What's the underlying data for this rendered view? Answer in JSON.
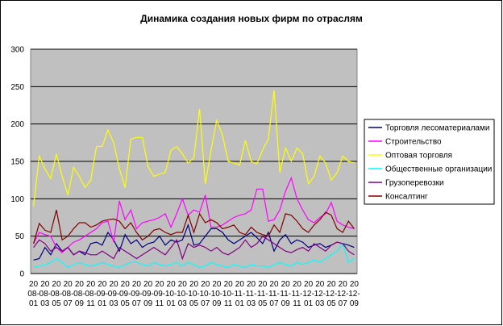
{
  "chart_data": {
    "type": "line",
    "title": "Динамика создания новых фирм по отраслям",
    "categories": [
      "2008-01",
      null,
      "2008-03",
      null,
      "2008-05",
      null,
      "2008-07",
      null,
      "2008-09",
      null,
      "2008-11",
      null,
      "2009-01",
      null,
      "2009-03",
      null,
      "2009-05",
      null,
      "2009-07",
      null,
      "2009-09",
      null,
      "2009-11",
      null,
      "2010-01",
      null,
      "2010-03",
      null,
      "2010-05",
      null,
      "2010-07",
      null,
      "2010-09",
      null,
      "2010-11",
      null,
      "2011-01",
      null,
      "2011-03",
      null,
      "2011-05",
      null,
      "2011-07",
      null,
      "2011-09",
      null,
      "2011-11",
      null,
      "2012-01",
      null,
      "2012-03",
      null,
      "2012-05",
      null,
      "2012-07",
      null,
      "2012-09"
    ],
    "series": [
      {
        "name": "Торговля лесоматериалами",
        "color": "#000080",
        "values": [
          18,
          20,
          35,
          25,
          40,
          30,
          35,
          25,
          30,
          25,
          40,
          42,
          38,
          55,
          45,
          30,
          52,
          40,
          45,
          35,
          40,
          42,
          50,
          38,
          45,
          42,
          45,
          65,
          38,
          40,
          50,
          60,
          60,
          55,
          45,
          40,
          45,
          50,
          55,
          48,
          40,
          55,
          30,
          45,
          52,
          40,
          45,
          42,
          35,
          38,
          40,
          35,
          38,
          42,
          40,
          38,
          35
        ]
      },
      {
        "name": "Строительство",
        "color": "#ff00ff",
        "values": [
          40,
          55,
          52,
          50,
          35,
          28,
          35,
          42,
          45,
          50,
          55,
          60,
          68,
          70,
          42,
          97,
          72,
          85,
          60,
          68,
          70,
          72,
          75,
          80,
          62,
          80,
          100,
          78,
          85,
          82,
          105,
          62,
          62,
          65,
          70,
          75,
          78,
          80,
          85,
          113,
          113,
          70,
          72,
          85,
          110,
          128,
          100,
          85,
          72,
          68,
          75,
          80,
          95,
          70,
          65,
          62,
          60
        ]
      },
      {
        "name": "Оптовая торговля",
        "color": "#ffff00",
        "values": [
          90,
          157,
          140,
          127,
          160,
          130,
          105,
          142,
          130,
          115,
          125,
          170,
          170,
          192,
          175,
          140,
          115,
          180,
          182,
          182,
          143,
          130,
          133,
          135,
          165,
          170,
          160,
          148,
          155,
          220,
          120,
          165,
          205,
          185,
          150,
          148,
          145,
          178,
          150,
          147,
          165,
          180,
          245,
          135,
          168,
          150,
          168,
          160,
          120,
          130,
          157,
          148,
          125,
          135,
          157,
          150,
          148
        ]
      },
      {
        "name": "Общественные организации",
        "color": "#00ffff",
        "values": [
          8,
          10,
          12,
          15,
          20,
          15,
          8,
          12,
          15,
          12,
          10,
          12,
          15,
          12,
          10,
          8,
          12,
          15,
          15,
          12,
          10,
          15,
          12,
          10,
          12,
          15,
          10,
          15,
          12,
          8,
          10,
          15,
          12,
          10,
          8,
          12,
          10,
          8,
          12,
          10,
          10,
          8,
          12,
          15,
          12,
          10,
          15,
          12,
          15,
          18,
          15,
          20,
          25,
          30,
          40,
          15,
          20
        ]
      },
      {
        "name": "Грузоперевозки",
        "color": "#800080",
        "values": [
          35,
          45,
          40,
          30,
          35,
          30,
          35,
          25,
          30,
          28,
          25,
          25,
          30,
          25,
          20,
          35,
          30,
          25,
          20,
          25,
          30,
          35,
          30,
          25,
          35,
          45,
          20,
          40,
          35,
          38,
          35,
          30,
          35,
          28,
          25,
          30,
          35,
          45,
          35,
          40,
          50,
          45,
          40,
          35,
          30,
          28,
          32,
          35,
          30,
          40,
          35,
          30,
          38,
          42,
          40,
          30,
          25
        ]
      },
      {
        "name": "Консалтинг",
        "color": "#800000",
        "values": [
          40,
          67,
          58,
          55,
          85,
          45,
          50,
          60,
          68,
          68,
          62,
          65,
          70,
          72,
          73,
          70,
          60,
          68,
          55,
          45,
          50,
          58,
          60,
          55,
          52,
          55,
          55,
          78,
          55,
          80,
          68,
          72,
          68,
          60,
          62,
          65,
          55,
          52,
          62,
          55,
          52,
          50,
          65,
          55,
          80,
          78,
          70,
          60,
          55,
          65,
          72,
          82,
          78,
          60,
          55,
          70,
          60
        ]
      }
    ],
    "ylim": [
      0,
      300
    ],
    "yticks": [
      0,
      50,
      100,
      150,
      200,
      250,
      300
    ],
    "grid": true,
    "legend": "right"
  }
}
